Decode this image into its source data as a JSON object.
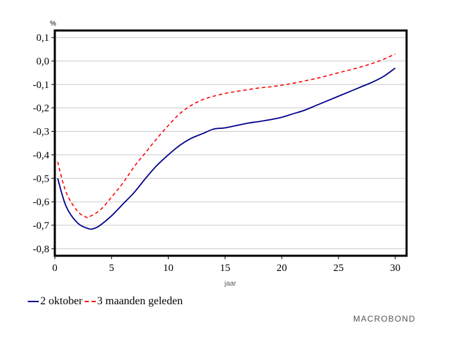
{
  "chart_data": {
    "type": "line",
    "title": "",
    "unit_label": "%",
    "xlabel": "jaar",
    "ylabel": "",
    "xlim": [
      0,
      31
    ],
    "ylim": [
      -0.83,
      0.13
    ],
    "x_ticks": [
      0,
      5,
      10,
      15,
      20,
      25,
      30
    ],
    "y_ticks": [
      0.1,
      0.0,
      -0.1,
      -0.2,
      -0.3,
      -0.4,
      -0.5,
      -0.6,
      -0.7,
      -0.8
    ],
    "y_tick_labels": [
      "0,1",
      "0,0",
      "-0,1",
      "-0,2",
      "-0,3",
      "-0,4",
      "-0,5",
      "-0,6",
      "-0,7",
      "-0,8"
    ],
    "x_tick_labels": [
      "0",
      "5",
      "10",
      "15",
      "20",
      "25",
      "30"
    ],
    "grid": true,
    "legend_position": "bottom-left",
    "series": [
      {
        "name": "2 oktober",
        "color": "#00008B",
        "style": "solid",
        "x": [
          0.25,
          1,
          2,
          3,
          3.5,
          4,
          5,
          6,
          7,
          8,
          9,
          10,
          11,
          12,
          13,
          14,
          15,
          16,
          17,
          18,
          19,
          20,
          21,
          22,
          23,
          24,
          25,
          26,
          27,
          28,
          29,
          30
        ],
        "y": [
          -0.5,
          -0.62,
          -0.69,
          -0.715,
          -0.713,
          -0.7,
          -0.66,
          -0.61,
          -0.56,
          -0.5,
          -0.445,
          -0.4,
          -0.36,
          -0.33,
          -0.31,
          -0.29,
          -0.285,
          -0.275,
          -0.265,
          -0.258,
          -0.25,
          -0.24,
          -0.225,
          -0.21,
          -0.19,
          -0.17,
          -0.15,
          -0.13,
          -0.11,
          -0.09,
          -0.065,
          -0.03
        ]
      },
      {
        "name": "3 maanden geleden",
        "color": "#FF0000",
        "style": "dashed",
        "x": [
          0.25,
          1,
          2,
          2.75,
          3,
          4,
          5,
          6,
          7,
          8,
          9,
          10,
          11,
          12,
          13,
          14,
          15,
          16,
          17,
          18,
          19,
          20,
          21,
          22,
          23,
          24,
          25,
          26,
          27,
          28,
          29,
          30
        ],
        "y": [
          -0.43,
          -0.56,
          -0.64,
          -0.665,
          -0.665,
          -0.635,
          -0.58,
          -0.52,
          -0.45,
          -0.39,
          -0.33,
          -0.275,
          -0.225,
          -0.19,
          -0.165,
          -0.15,
          -0.138,
          -0.13,
          -0.122,
          -0.115,
          -0.11,
          -0.103,
          -0.095,
          -0.085,
          -0.075,
          -0.063,
          -0.05,
          -0.038,
          -0.025,
          -0.01,
          0.008,
          0.03
        ]
      }
    ]
  },
  "branding": {
    "logo_text": "MACROBOND"
  }
}
